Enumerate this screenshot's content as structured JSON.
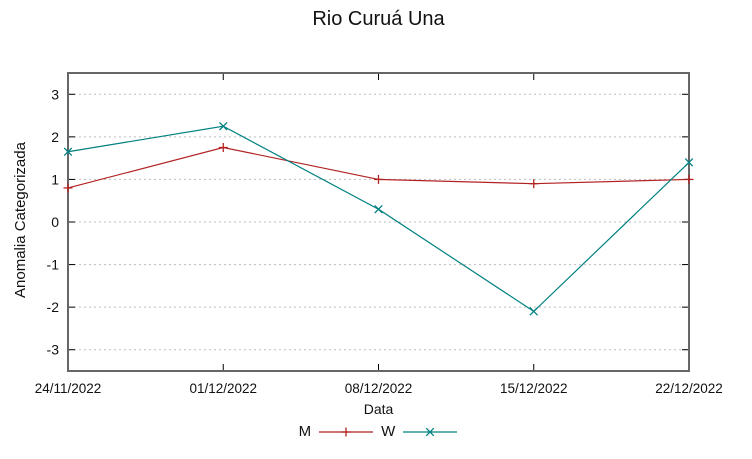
{
  "chart_data": {
    "type": "line",
    "title": "Rio Curuá Una",
    "xlabel": "Data",
    "ylabel": "Anomalia Categorizada",
    "categories": [
      "24/11/2022",
      "01/12/2022",
      "08/12/2022",
      "15/12/2022",
      "22/12/2022"
    ],
    "series": [
      {
        "name": "M",
        "color": "#b22222",
        "marker": "plus",
        "values": [
          0.8,
          1.75,
          1.0,
          0.9,
          1.0
        ]
      },
      {
        "name": "W",
        "color": "#008080",
        "marker": "cross",
        "values": [
          1.65,
          2.25,
          0.3,
          -2.1,
          1.4
        ]
      }
    ],
    "ylim": [
      -3.5,
      3.5
    ],
    "yticks": [
      3,
      2,
      1,
      0,
      -1,
      -2,
      -3
    ],
    "grid": "horizontal-dashed",
    "legend_position": "bottom-center",
    "colors": {
      "border": "#666666",
      "grid": "#bdbdbd",
      "tick": "#000000",
      "text": "#111111",
      "background": "#ffffff"
    }
  }
}
